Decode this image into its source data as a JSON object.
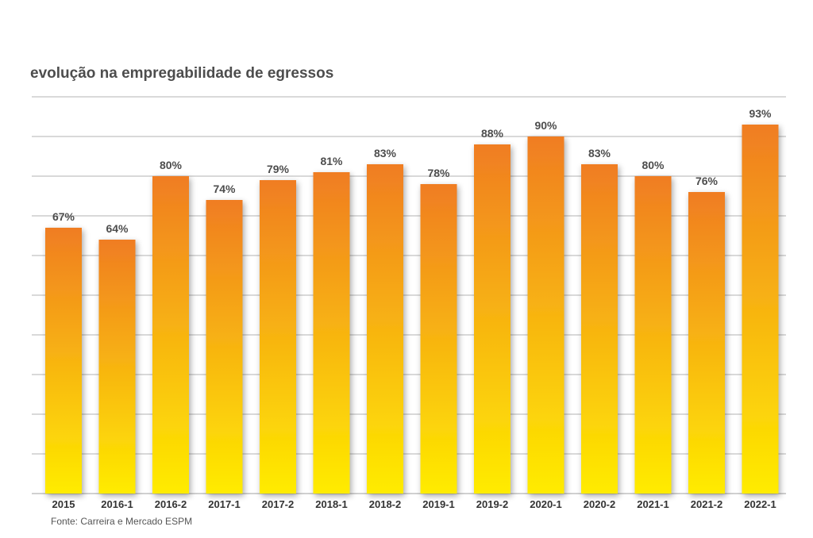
{
  "title": "evolução na empregabilidade de egressos",
  "source": "Fonte: Carreira e Mercado ESPM",
  "chart_data": {
    "type": "bar",
    "title": "evolução na empregabilidade de egressos",
    "categories": [
      "2015",
      "2016-1",
      "2016-2",
      "2017-1",
      "2017-2",
      "2018-1",
      "2018-2",
      "2019-1",
      "2019-2",
      "2020-1",
      "2020-2",
      "2021-1",
      "2021-2",
      "2022-1"
    ],
    "values": [
      67,
      64,
      80,
      74,
      79,
      81,
      83,
      78,
      88,
      90,
      83,
      80,
      76,
      93
    ],
    "value_labels": [
      "67%",
      "64%",
      "80%",
      "74%",
      "79%",
      "81%",
      "83%",
      "78%",
      "88%",
      "90%",
      "83%",
      "80%",
      "76%",
      "93%"
    ],
    "xlabel": "",
    "ylabel": "",
    "ylim": [
      0,
      100
    ],
    "grid": true,
    "colors": {
      "bar_top": "#f07d22",
      "bar_bottom": "#ffec00",
      "grid": "#b3b3b3",
      "label": "#4d4d4d"
    }
  }
}
